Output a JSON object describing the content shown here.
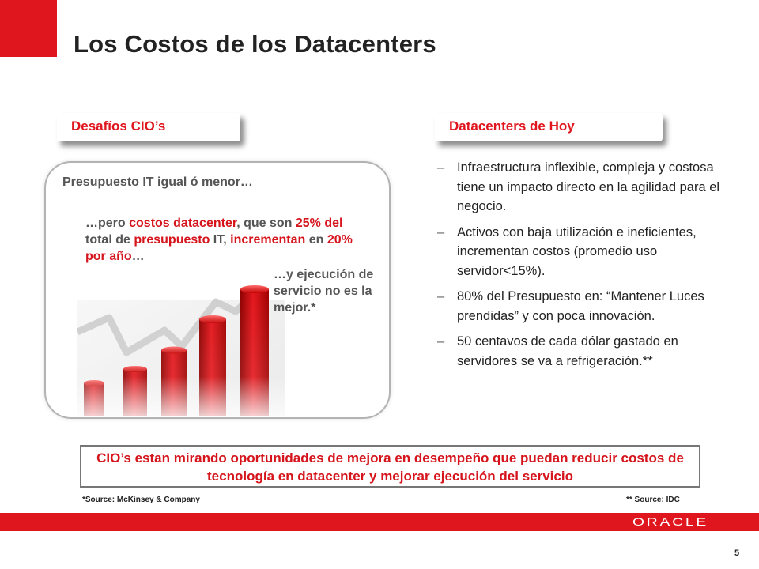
{
  "slide": {
    "title": "Los Costos de los Datacenters",
    "page_number": "5"
  },
  "left": {
    "tab": "Desafíos CIO’s",
    "text1": "Presupuesto IT igual ó menor…",
    "text2": {
      "a": "…pero ",
      "b": "costos datacenter",
      "c": ", que son ",
      "d": "25% del",
      "e": " total de ",
      "f": "presupuesto",
      "g": " IT, ",
      "h": "incrementan",
      "i": " en ",
      "j": "20% por año",
      "k": "…"
    },
    "text3": "…y ejecución de servicio no es la mejor.*"
  },
  "right": {
    "tab": "Datacenters de Hoy",
    "bullet_symbol": "–",
    "bullets": [
      "Infraestructura inflexible, compleja y costosa tiene un impacto directo en la agilidad para el negocio.",
      "Activos con baja utilización e ineficientes, incrementan costos (promedio uso servidor<15%).",
      "80% del Presupuesto en: “Mantener Luces prendidas” y con poca innovación.",
      "50 centavos de cada dólar gastado en servidores se va a refrigeración.**"
    ]
  },
  "callout": "CIO’s estan mirando oportunidades de mejora en desempeño que puedan reducir costos de tecnología en datacenter y mejorar ejecución del servicio",
  "sources": {
    "left": "*Source: McKinsey & Company",
    "right": "** Source: IDC"
  },
  "brand": {
    "logo": "ORACLE",
    "accent": "#e0161e"
  }
}
